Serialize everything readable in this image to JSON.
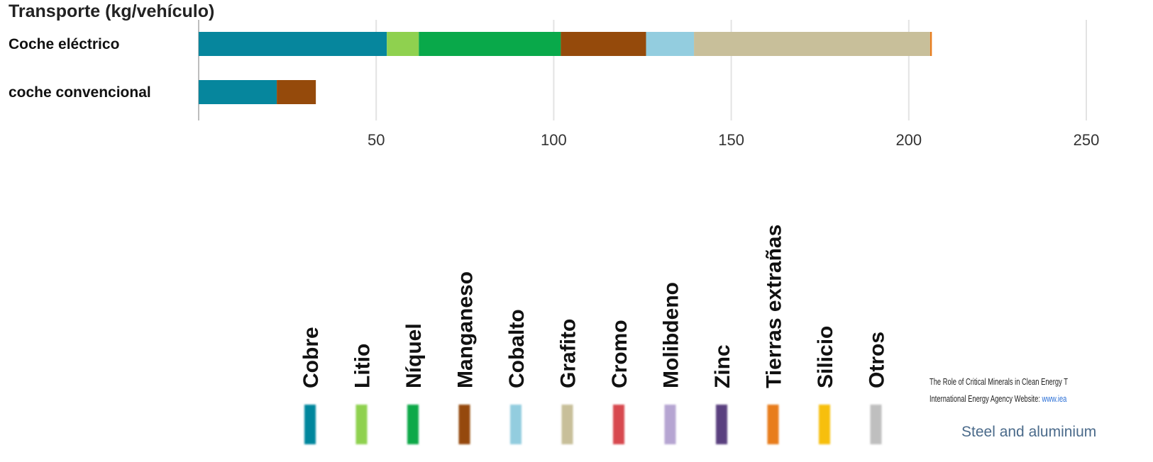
{
  "chart_data": {
    "type": "bar",
    "orientation": "horizontal",
    "stacked": true,
    "title": "Transporte (kg/vehículo)",
    "categories": [
      "Coche eléctrico",
      "coche convencional"
    ],
    "xlim": [
      0,
      250
    ],
    "xticks": [
      50,
      100,
      150,
      200,
      250
    ],
    "grid": true,
    "legend_placement": "bottom",
    "series": [
      {
        "name": "Cobre",
        "color": "#06869d",
        "values": [
          53,
          22
        ]
      },
      {
        "name": "Litio",
        "color": "#8fd14f",
        "values": [
          9,
          0
        ]
      },
      {
        "name": "Níquel",
        "color": "#09a94a",
        "values": [
          40,
          0
        ]
      },
      {
        "name": "Manganeso",
        "color": "#954a0b",
        "values": [
          24,
          11
        ]
      },
      {
        "name": "Cobalto",
        "color": "#93cddf",
        "values": [
          13.5,
          0
        ]
      },
      {
        "name": "Grafito",
        "color": "#c8bf9a",
        "values": [
          66.5,
          0
        ]
      },
      {
        "name": "Cromo",
        "color": "#d84a4f",
        "values": [
          0,
          0
        ]
      },
      {
        "name": "Molibdeno",
        "color": "#b6a5d2",
        "values": [
          0,
          0
        ]
      },
      {
        "name": "Zinc",
        "color": "#5a417f",
        "values": [
          0,
          0
        ]
      },
      {
        "name": "Tierras extrañas",
        "color": "#e87d1e",
        "values": [
          0.5,
          0
        ]
      },
      {
        "name": "Silicio",
        "color": "#f7bf07",
        "values": [
          0,
          0
        ]
      },
      {
        "name": "Otros",
        "color": "#bfbfbf",
        "values": [
          0,
          0
        ]
      }
    ]
  },
  "source": {
    "line1": "The Role of Critical Minerals in Clean Energy T",
    "line2_prefix": "International Energy Agency Website: ",
    "line2_url": "www.iea",
    "note": "Steel and aluminium"
  }
}
